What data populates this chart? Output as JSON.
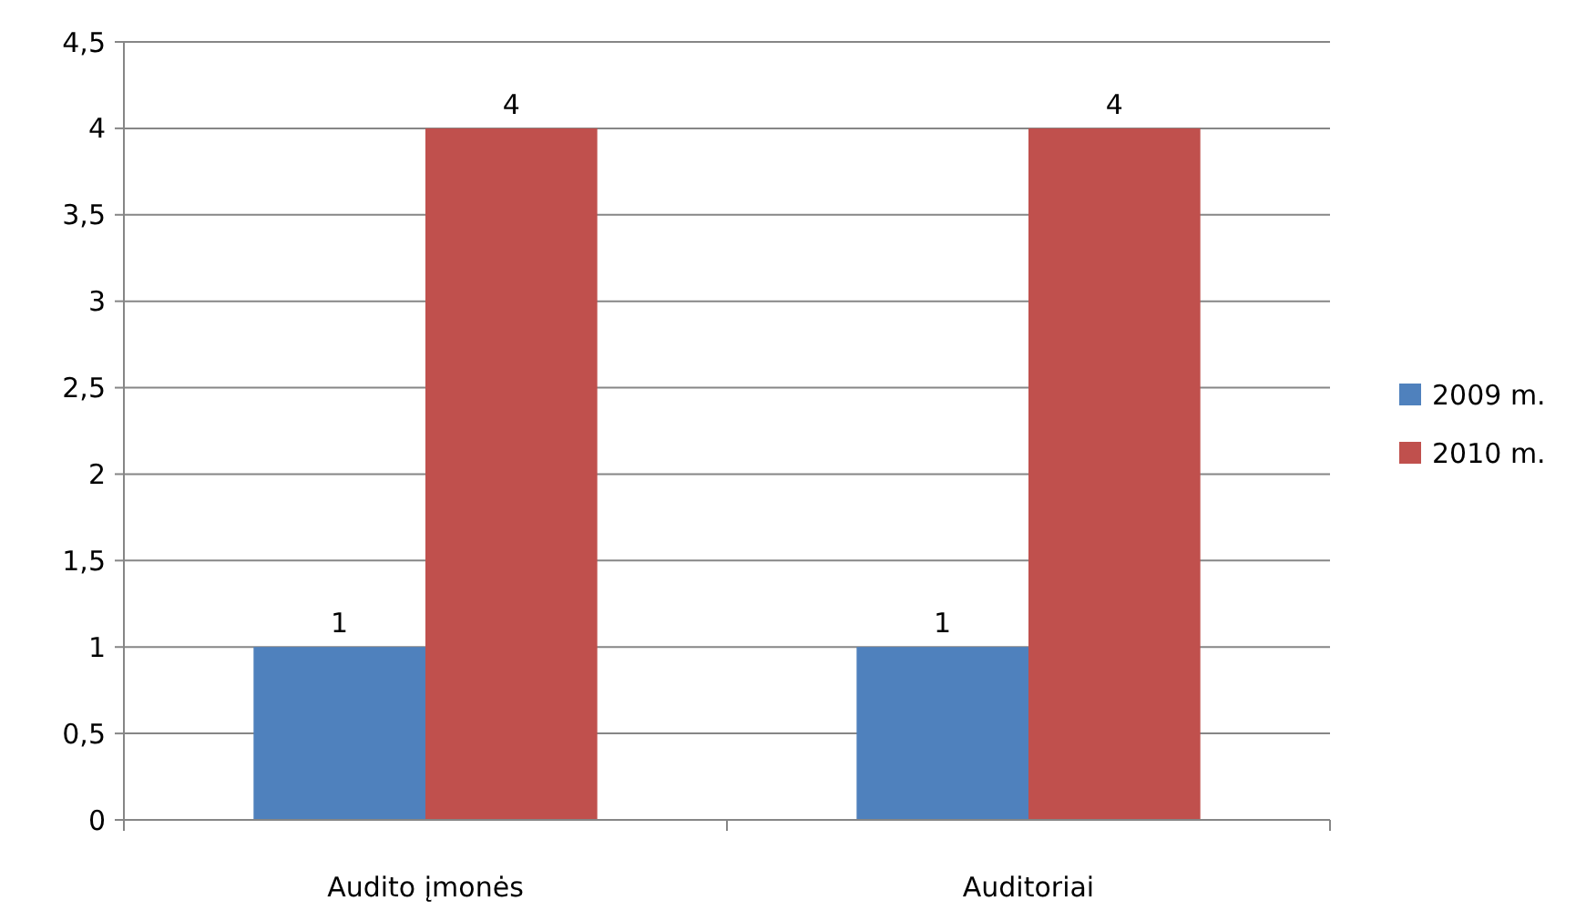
{
  "chart_data": {
    "type": "bar",
    "categories": [
      "Audito įmonės",
      "Auditoriai"
    ],
    "series": [
      {
        "name": "2009 m.",
        "color": "#4f81bd",
        "values": [
          1,
          1
        ]
      },
      {
        "name": "2010 m.",
        "color": "#c0504d",
        "values": [
          4,
          4
        ]
      }
    ],
    "ylim": [
      0,
      4.5
    ],
    "yticks": [
      0,
      {
        "value": 0.5,
        "label": "0,5"
      },
      1,
      {
        "value": 1.5,
        "label": "1,5"
      },
      2,
      {
        "value": 2.5,
        "label": "2,5"
      },
      3,
      {
        "value": 3.5,
        "label": "3,5"
      },
      4,
      {
        "value": 4.5,
        "label": "4,5"
      }
    ],
    "grid": "y",
    "legend": "right",
    "data_labels": true
  }
}
